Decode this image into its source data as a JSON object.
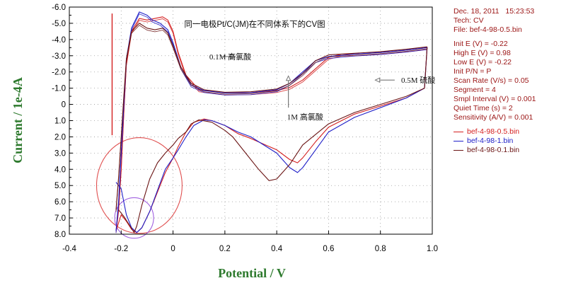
{
  "chart_data": {
    "type": "line",
    "title": "同一电极Pt/C(JM)在不同体系下的CV图",
    "xlabel": "Potential / V",
    "ylabel": "Current / 1e-4A",
    "xlim": [
      -0.4,
      1.0
    ],
    "ylim": [
      -6.0,
      8.0
    ],
    "y_inverted": true,
    "x_ticks": [
      "-0.4",
      "-0.2",
      "0",
      "0.2",
      "0.4",
      "0.6",
      "0.8",
      "1.0"
    ],
    "y_ticks": [
      "-6.0",
      "-5.5",
      "-5.0",
      "-4.5",
      "-4.0",
      "-3.5",
      "-3.0",
      "-2.5",
      "-2.0",
      "-1.5",
      "-1.0",
      "-0.5",
      "0",
      "0.5",
      "1.0",
      "1.5",
      "2.0",
      "2.5",
      "3.0",
      "3.5",
      "4.0",
      "4.5",
      "5.0",
      "5.5",
      "6.0",
      "6.5",
      "7.0",
      "7.5",
      "8.0"
    ],
    "y_ticks_labeled": [
      "-6.0",
      "-5.0",
      "-4.0",
      "-3.0",
      "-2.0",
      "-1.0",
      "0",
      "1.0",
      "2.0",
      "3.0",
      "4.0",
      "5.0",
      "6.0",
      "7.0",
      "8.0"
    ],
    "grid": "dotted",
    "annotations": [
      {
        "text": "0.1M 高氯酸",
        "x": 0.14,
        "y": -2.95
      },
      {
        "text": "0.5M 硫酸",
        "x": 0.88,
        "y": -1.5
      },
      {
        "text": "1M 高氯酸",
        "x": 0.44,
        "y": 0.75
      }
    ],
    "series": [
      {
        "name": "bef-4-98-0.5.bin",
        "color": "#d42020",
        "anodic": [
          [
            -0.22,
            7.8
          ],
          [
            -0.21,
            6.5
          ],
          [
            -0.2,
            4.0
          ],
          [
            -0.19,
            0.5
          ],
          [
            -0.18,
            -2.5
          ],
          [
            -0.16,
            -4.5
          ],
          [
            -0.13,
            -5.3
          ],
          [
            -0.1,
            -5.2
          ],
          [
            -0.07,
            -5.3
          ],
          [
            -0.04,
            -5.4
          ],
          [
            -0.02,
            -5.2
          ],
          [
            0.0,
            -4.5
          ],
          [
            0.02,
            -3.2
          ],
          [
            0.05,
            -1.8
          ],
          [
            0.1,
            -0.9
          ],
          [
            0.2,
            -0.7
          ],
          [
            0.3,
            -0.72
          ],
          [
            0.4,
            -0.85
          ],
          [
            0.45,
            -1.05
          ],
          [
            0.5,
            -1.5
          ],
          [
            0.55,
            -2.2
          ],
          [
            0.6,
            -2.9
          ],
          [
            0.65,
            -3.1
          ],
          [
            0.7,
            -3.1
          ],
          [
            0.8,
            -3.2
          ],
          [
            0.9,
            -3.35
          ],
          [
            0.98,
            -3.5
          ]
        ],
        "cathodic": [
          [
            0.98,
            -3.5
          ],
          [
            0.97,
            -1.0
          ],
          [
            0.9,
            -0.4
          ],
          [
            0.8,
            0.1
          ],
          [
            0.7,
            0.6
          ],
          [
            0.6,
            1.4
          ],
          [
            0.55,
            2.3
          ],
          [
            0.5,
            3.3
          ],
          [
            0.48,
            3.6
          ],
          [
            0.45,
            3.4
          ],
          [
            0.4,
            2.8
          ],
          [
            0.3,
            2.1
          ],
          [
            0.25,
            1.8
          ],
          [
            0.2,
            1.3
          ],
          [
            0.15,
            1.0
          ],
          [
            0.12,
            0.9
          ],
          [
            0.08,
            1.1
          ],
          [
            0.05,
            1.7
          ],
          [
            0.02,
            2.6
          ],
          [
            0.0,
            3.3
          ],
          [
            -0.03,
            4.2
          ],
          [
            -0.06,
            5.4
          ],
          [
            -0.09,
            6.6
          ],
          [
            -0.12,
            7.6
          ],
          [
            -0.14,
            7.9
          ],
          [
            -0.16,
            7.7
          ],
          [
            -0.18,
            7.2
          ],
          [
            -0.2,
            6.8
          ],
          [
            -0.22,
            7.8
          ]
        ]
      },
      {
        "name": "bef-4-98-1.bin",
        "color": "#2020c8",
        "anodic": [
          [
            -0.22,
            7.8
          ],
          [
            -0.21,
            6.0
          ],
          [
            -0.2,
            3.0
          ],
          [
            -0.19,
            0.0
          ],
          [
            -0.18,
            -2.8
          ],
          [
            -0.16,
            -4.7
          ],
          [
            -0.13,
            -5.7
          ],
          [
            -0.1,
            -5.5
          ],
          [
            -0.08,
            -5.2
          ],
          [
            -0.05,
            -5.0
          ],
          [
            -0.02,
            -4.6
          ],
          [
            0.0,
            -3.8
          ],
          [
            0.03,
            -2.3
          ],
          [
            0.07,
            -1.2
          ],
          [
            0.12,
            -0.85
          ],
          [
            0.2,
            -0.7
          ],
          [
            0.3,
            -0.72
          ],
          [
            0.4,
            -0.9
          ],
          [
            0.45,
            -1.3
          ],
          [
            0.5,
            -2.0
          ],
          [
            0.55,
            -2.7
          ],
          [
            0.6,
            -2.95
          ],
          [
            0.7,
            -3.1
          ],
          [
            0.8,
            -3.2
          ],
          [
            0.9,
            -3.35
          ],
          [
            0.98,
            -3.5
          ]
        ],
        "cathodic": [
          [
            0.98,
            -3.5
          ],
          [
            0.97,
            -1.0
          ],
          [
            0.9,
            -0.4
          ],
          [
            0.8,
            0.2
          ],
          [
            0.7,
            0.8
          ],
          [
            0.6,
            1.7
          ],
          [
            0.55,
            2.8
          ],
          [
            0.5,
            3.9
          ],
          [
            0.48,
            4.2
          ],
          [
            0.45,
            3.9
          ],
          [
            0.4,
            3.0
          ],
          [
            0.3,
            2.0
          ],
          [
            0.25,
            1.7
          ],
          [
            0.2,
            1.3
          ],
          [
            0.15,
            1.0
          ],
          [
            0.12,
            0.95
          ],
          [
            0.08,
            1.3
          ],
          [
            0.05,
            2.0
          ],
          [
            0.02,
            2.8
          ],
          [
            0.0,
            3.3
          ],
          [
            -0.03,
            4.0
          ],
          [
            -0.06,
            5.3
          ],
          [
            -0.09,
            6.6
          ],
          [
            -0.12,
            7.6
          ],
          [
            -0.14,
            7.9
          ],
          [
            -0.16,
            7.6
          ],
          [
            -0.18,
            6.8
          ],
          [
            -0.2,
            5.2
          ],
          [
            -0.22,
            4.8
          ]
        ]
      },
      {
        "name": "bef-4-98-0.1.bin",
        "color": "#6b1515",
        "anodic": [
          [
            -0.22,
            6.5
          ],
          [
            -0.21,
            4.5
          ],
          [
            -0.2,
            2.0
          ],
          [
            -0.19,
            -0.5
          ],
          [
            -0.18,
            -2.8
          ],
          [
            -0.16,
            -4.5
          ],
          [
            -0.13,
            -5.0
          ],
          [
            -0.1,
            -4.7
          ],
          [
            -0.07,
            -4.6
          ],
          [
            -0.04,
            -4.7
          ],
          [
            -0.02,
            -4.4
          ],
          [
            0.0,
            -3.6
          ],
          [
            0.03,
            -2.3
          ],
          [
            0.07,
            -1.3
          ],
          [
            0.12,
            -0.9
          ],
          [
            0.2,
            -0.75
          ],
          [
            0.3,
            -0.78
          ],
          [
            0.4,
            -0.95
          ],
          [
            0.45,
            -1.3
          ],
          [
            0.5,
            -1.9
          ],
          [
            0.55,
            -2.7
          ],
          [
            0.6,
            -3.05
          ],
          [
            0.7,
            -3.15
          ],
          [
            0.8,
            -3.25
          ],
          [
            0.9,
            -3.4
          ],
          [
            0.98,
            -3.55
          ]
        ],
        "cathodic": [
          [
            0.98,
            -3.55
          ],
          [
            0.97,
            -1.0
          ],
          [
            0.9,
            -0.5
          ],
          [
            0.8,
            0.0
          ],
          [
            0.7,
            0.5
          ],
          [
            0.6,
            1.2
          ],
          [
            0.5,
            2.5
          ],
          [
            0.45,
            3.7
          ],
          [
            0.4,
            4.6
          ],
          [
            0.37,
            4.7
          ],
          [
            0.33,
            4.0
          ],
          [
            0.28,
            3.0
          ],
          [
            0.23,
            2.0
          ],
          [
            0.2,
            1.6
          ],
          [
            0.15,
            1.1
          ],
          [
            0.1,
            0.95
          ],
          [
            0.07,
            1.2
          ],
          [
            0.05,
            1.7
          ],
          [
            0.02,
            2.1
          ],
          [
            0.0,
            2.5
          ],
          [
            -0.03,
            3.0
          ],
          [
            -0.06,
            3.6
          ],
          [
            -0.09,
            4.6
          ],
          [
            -0.12,
            6.2
          ],
          [
            -0.14,
            7.5
          ],
          [
            -0.15,
            7.9
          ],
          [
            -0.17,
            7.4
          ],
          [
            -0.19,
            6.9
          ],
          [
            -0.21,
            6.5
          ]
        ]
      }
    ],
    "vertical_marker": {
      "x": -0.235,
      "y_from": -5.6,
      "y_to": 1.9,
      "color": "#d42020"
    },
    "circles": [
      {
        "cx": -0.13,
        "cy": 5.0,
        "rx": 0.165,
        "ry": 2.95,
        "color": "#e05050"
      },
      {
        "cx": -0.15,
        "cy": 7.0,
        "rx": 0.075,
        "ry": 1.25,
        "color": "#a060e0"
      }
    ],
    "arrows": [
      {
        "from": [
          0.19,
          -2.95
        ],
        "to": [
          0.24,
          -2.95
        ]
      },
      {
        "from": [
          0.855,
          -1.5
        ],
        "to": [
          0.78,
          -1.5
        ]
      },
      {
        "from": [
          0.445,
          0.2
        ],
        "to": [
          0.445,
          -1.75
        ]
      }
    ]
  },
  "info": {
    "date": "Dec. 18, 2011",
    "time": "15:23:53",
    "tech": "Tech: CV",
    "file": "File: bef-4-98-0.5.bin",
    "params": [
      "Init E (V) = -0.22",
      "High E (V) = 0.98",
      "Low E (V) = -0.22",
      "Init P/N = P",
      "Scan Rate (V/s) = 0.05",
      "Segment = 4",
      "Smpl Interval (V) = 0.001",
      "Quiet Time (s) = 2",
      "Sensitivity (A/V) = 0.001"
    ],
    "legend": [
      {
        "label": "bef-4-98-0.5.bin",
        "color": "#d42020"
      },
      {
        "label": "bef-4-98-1.bin",
        "color": "#2020c8"
      },
      {
        "label": "bef-4-98-0.1.bin",
        "color": "#6b1515"
      }
    ]
  }
}
